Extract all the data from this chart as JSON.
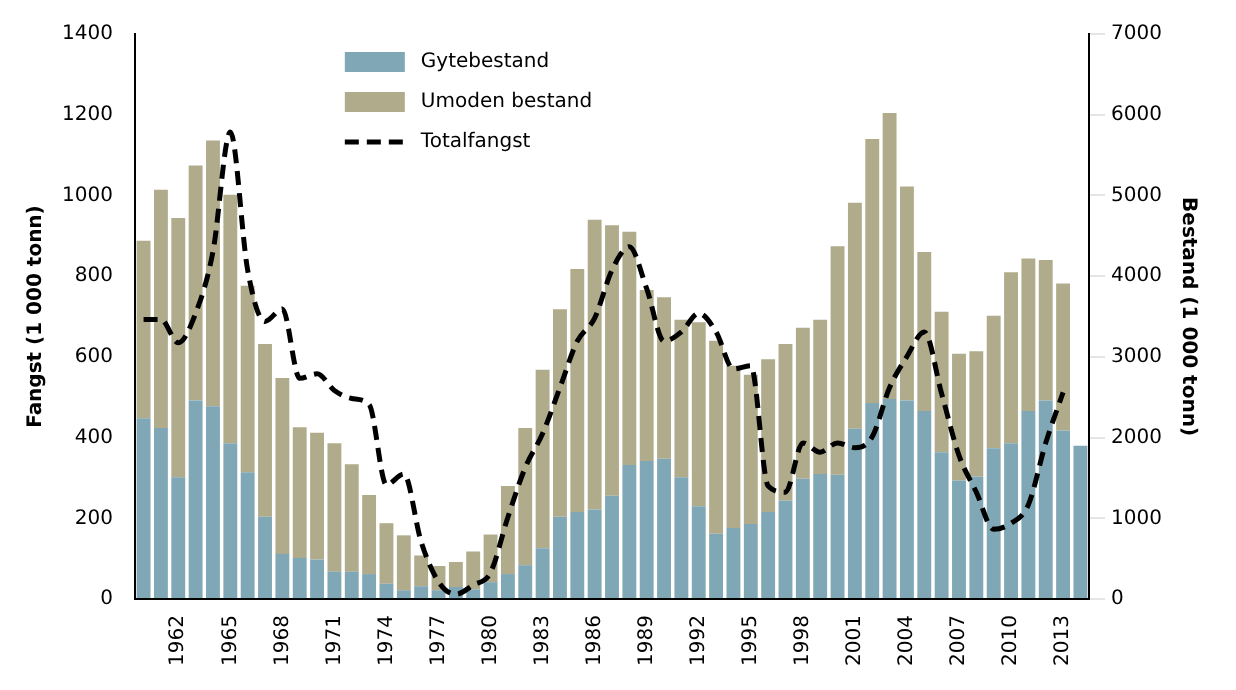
{
  "chart_data": {
    "type": "bar",
    "stacked": true,
    "grid": false,
    "legend": "top",
    "categories": [
      null,
      null,
      "1962",
      null,
      null,
      "1965",
      null,
      null,
      "1968",
      null,
      null,
      "1971",
      null,
      null,
      "1974",
      null,
      null,
      "1977",
      null,
      null,
      "1980",
      null,
      null,
      "1983",
      null,
      null,
      "1986",
      null,
      null,
      "1989",
      null,
      null,
      "1992",
      null,
      null,
      "1995",
      null,
      null,
      "1998",
      null,
      null,
      "2001",
      null,
      null,
      "2004",
      null,
      null,
      "2007",
      null,
      null,
      "2010",
      null,
      null,
      "2013",
      null
    ],
    "ylabel": "Fangst (1 000 tonn)",
    "y2label": "Bestand (1 000 tonn)",
    "ylim": [
      0,
      1400
    ],
    "yticks": [
      0,
      200,
      400,
      600,
      800,
      1000,
      1200,
      1400
    ],
    "y2lim": [
      0,
      7000
    ],
    "y2ticks": [
      0,
      1000,
      2000,
      3000,
      4000,
      5000,
      6000,
      7000
    ],
    "series": [
      {
        "name": "Gytebestand",
        "color": "#7fa7b5",
        "axis": "y2",
        "values": [
          2240,
          2120,
          1510,
          2460,
          2390,
          1930,
          1570,
          1020,
          560,
          510,
          490,
          340,
          340,
          310,
          190,
          110,
          160,
          110,
          150,
          120,
          210,
          310,
          420,
          630,
          1020,
          1080,
          1110,
          1280,
          1660,
          1710,
          1740,
          1510,
          1150,
          810,
          880,
          930,
          1080,
          1220,
          1490,
          1550,
          1540,
          2110,
          2430,
          2480,
          2460,
          2330,
          1820,
          1470,
          1520,
          1870,
          1930,
          2330,
          2460,
          2090,
          1900
        ]
      },
      {
        "name": "Umoden bestand",
        "color": "#b0ab8b",
        "axis": "y2",
        "values": [
          2200,
          2950,
          3210,
          2910,
          3290,
          3080,
          2310,
          2140,
          2180,
          1620,
          1570,
          1590,
          1330,
          980,
          750,
          680,
          380,
          300,
          310,
          470,
          590,
          1090,
          1700,
          2210,
          2570,
          3010,
          3590,
          3350,
          2890,
          2120,
          2000,
          1950,
          2280,
          2390,
          2010,
          1850,
          1890,
          1940,
          1870,
          1910,
          2830,
          2800,
          3270,
          3540,
          2650,
          1970,
          1740,
          1570,
          1550,
          1640,
          2120,
          1890,
          1740,
          1820,
          0
        ]
      },
      {
        "name": "Totalfangst",
        "type": "line",
        "color": "#000000",
        "line_style": "dashed",
        "marker": "none",
        "axis": "y",
        "values": [
          693,
          693,
          635,
          708,
          861,
          1157,
          815,
          688,
          719,
          547,
          558,
          517,
          497,
          482,
          283,
          310,
          142,
          43,
          12,
          35,
          66,
          203,
          326,
          410,
          524,
          639,
          696,
          815,
          873,
          769,
          639,
          662,
          708,
          662,
          570,
          578,
          280,
          265,
          387,
          364,
          387,
          375,
          402,
          524,
          601,
          662,
          509,
          356,
          265,
          173,
          188,
          234,
          387,
          512,
          null
        ]
      }
    ]
  }
}
